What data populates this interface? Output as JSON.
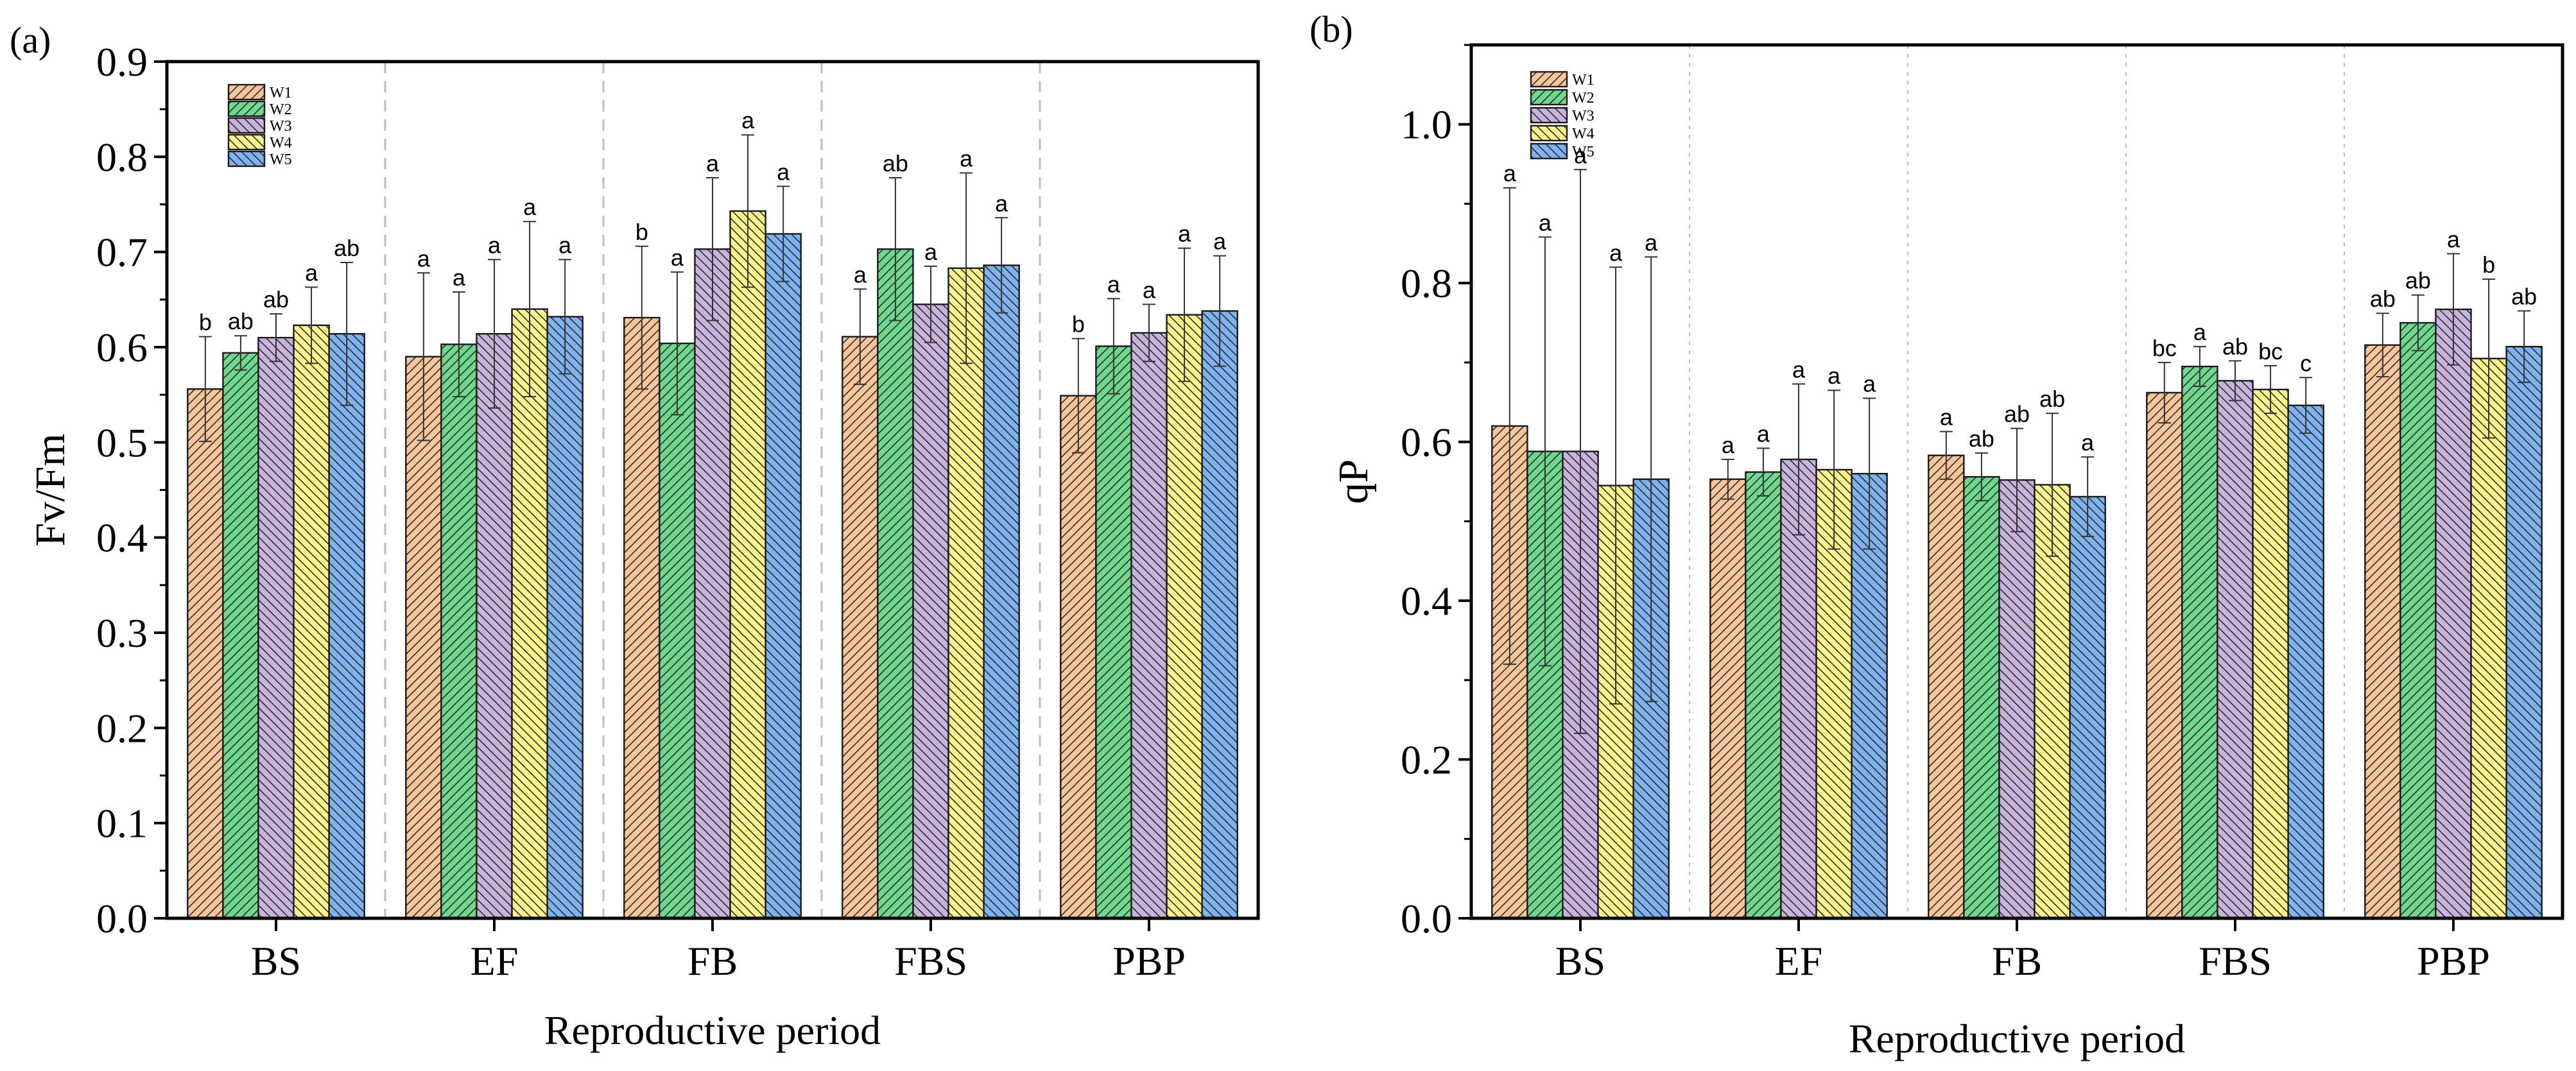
{
  "chart_data": [
    {
      "type": "bar",
      "panel_label": "(a)",
      "title": "",
      "xlabel": "Reproductive period",
      "ylabel": "Fv/Fm",
      "ylim": [
        0,
        0.9
      ],
      "yticks": [
        "0.0",
        "0.1",
        "0.2",
        "0.3",
        "0.4",
        "0.5",
        "0.6",
        "0.7",
        "0.8",
        "0.9"
      ],
      "categories": [
        "BS",
        "EF",
        "FB",
        "FBS",
        "PBP"
      ],
      "legend": "top-left",
      "series": [
        {
          "name": "W1",
          "color": "#f8c49a",
          "hatch": "forward",
          "values": [
            0.556,
            0.59,
            0.631,
            0.611,
            0.549
          ],
          "errors": [
            0.055,
            0.088,
            0.075,
            0.05,
            0.06
          ],
          "letters": [
            "b",
            "a",
            "b",
            "a",
            "b"
          ]
        },
        {
          "name": "W2",
          "color": "#6fd88e",
          "hatch": "forward",
          "values": [
            0.594,
            0.603,
            0.604,
            0.703,
            0.601
          ],
          "errors": [
            0.018,
            0.055,
            0.075,
            0.075,
            0.05
          ],
          "letters": [
            "ab",
            "a",
            "a",
            "ab",
            "a"
          ]
        },
        {
          "name": "W3",
          "color": "#c9b3dc",
          "hatch": "backward",
          "values": [
            0.61,
            0.614,
            0.703,
            0.645,
            0.615
          ],
          "errors": [
            0.025,
            0.078,
            0.075,
            0.04,
            0.03
          ],
          "letters": [
            "ab",
            "a",
            "a",
            "a",
            "a"
          ]
        },
        {
          "name": "W4",
          "color": "#fcf58e",
          "hatch": "backward",
          "values": [
            0.623,
            0.64,
            0.743,
            0.683,
            0.634
          ],
          "errors": [
            0.04,
            0.092,
            0.08,
            0.1,
            0.07
          ],
          "letters": [
            "a",
            "a",
            "a",
            "a",
            "a"
          ]
        },
        {
          "name": "W5",
          "color": "#7fb3f0",
          "hatch": "backward",
          "values": [
            0.614,
            0.632,
            0.719,
            0.686,
            0.638
          ],
          "errors": [
            0.075,
            0.06,
            0.05,
            0.05,
            0.058
          ],
          "letters": [
            "ab",
            "a",
            "a",
            "a",
            "a"
          ]
        }
      ]
    },
    {
      "type": "bar",
      "panel_label": "(b)",
      "title": "",
      "xlabel": "Reproductive period",
      "ylabel": "qP",
      "ylim": [
        0,
        1.1
      ],
      "yticks": [
        "0.0",
        "0.2",
        "0.4",
        "0.6",
        "0.8",
        "1.0"
      ],
      "categories": [
        "BS",
        "EF",
        "FB",
        "FBS",
        "PBP"
      ],
      "legend": "top-left",
      "series": [
        {
          "name": "W1",
          "color": "#f8c49a",
          "hatch": "forward",
          "values": [
            0.62,
            0.553,
            0.583,
            0.662,
            0.722
          ],
          "errors": [
            0.3,
            0.025,
            0.03,
            0.038,
            0.04
          ],
          "letters": [
            "a",
            "a",
            "a",
            "bc",
            "ab"
          ]
        },
        {
          "name": "W2",
          "color": "#6fd88e",
          "hatch": "forward",
          "values": [
            0.588,
            0.562,
            0.556,
            0.695,
            0.75
          ],
          "errors": [
            0.27,
            0.03,
            0.03,
            0.025,
            0.035
          ],
          "letters": [
            "a",
            "a",
            "ab",
            "a",
            "ab"
          ]
        },
        {
          "name": "W3",
          "color": "#c9b3dc",
          "hatch": "backward",
          "values": [
            0.588,
            0.578,
            0.552,
            0.677,
            0.767
          ],
          "errors": [
            0.355,
            0.095,
            0.065,
            0.025,
            0.07
          ],
          "letters": [
            "a",
            "a",
            "ab",
            "ab",
            "a"
          ]
        },
        {
          "name": "W4",
          "color": "#fcf58e",
          "hatch": "backward",
          "values": [
            0.545,
            0.565,
            0.546,
            0.666,
            0.705
          ],
          "errors": [
            0.275,
            0.1,
            0.09,
            0.03,
            0.1
          ],
          "letters": [
            "a",
            "a",
            "ab",
            "bc",
            "b"
          ]
        },
        {
          "name": "W5",
          "color": "#7fb3f0",
          "hatch": "backward",
          "values": [
            0.553,
            0.56,
            0.531,
            0.646,
            0.72
          ],
          "errors": [
            0.28,
            0.095,
            0.05,
            0.035,
            0.045
          ],
          "letters": [
            "a",
            "a",
            "a",
            "c",
            "ab"
          ]
        }
      ]
    }
  ]
}
